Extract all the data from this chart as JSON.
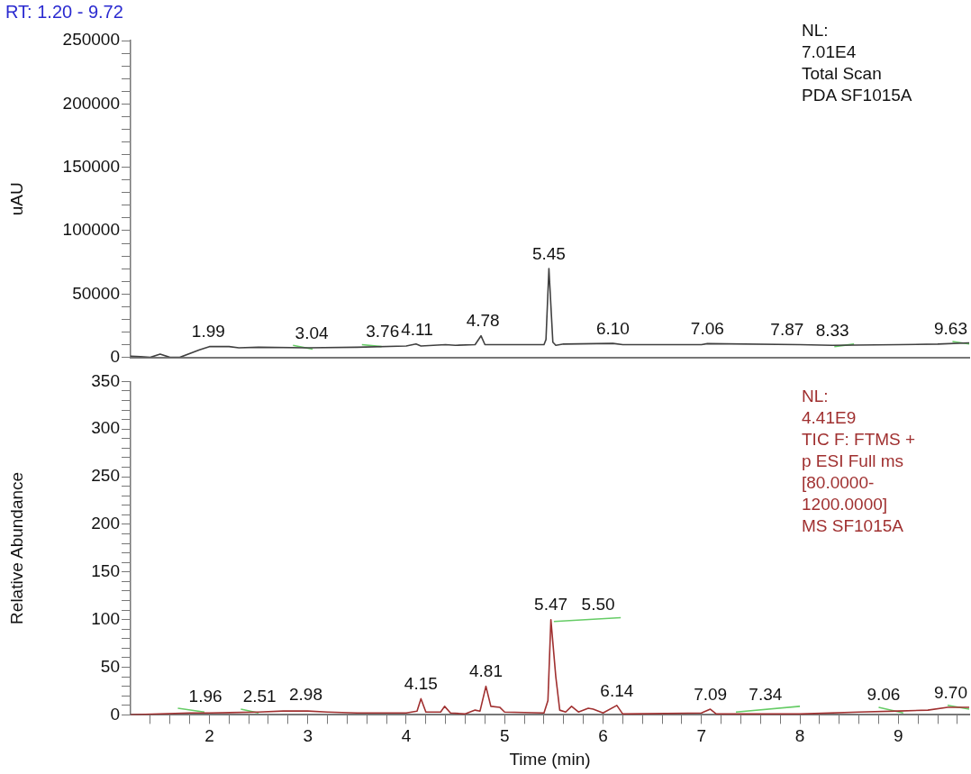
{
  "chart_data": [
    {
      "type": "line",
      "title": "RT: 1.20 - 9.72",
      "ylabel": "uAU",
      "xlim": [
        1.2,
        9.72
      ],
      "ylim": [
        0,
        250000
      ],
      "tick_labels": "y",
      "legend": false,
      "grid": false,
      "marker": "none",
      "yticks": [
        0,
        {
          "value": 10000,
          "label": null
        },
        {
          "value": 20000,
          "label": null
        },
        {
          "value": 30000,
          "label": null
        },
        {
          "value": 40000,
          "label": null
        },
        50000,
        {
          "value": 60000,
          "label": null
        },
        {
          "value": 70000,
          "label": null
        },
        {
          "value": 80000,
          "label": null
        },
        {
          "value": 90000,
          "label": null
        },
        100000,
        {
          "value": 110000,
          "label": null
        },
        {
          "value": 120000,
          "label": null
        },
        {
          "value": 130000,
          "label": null
        },
        {
          "value": 140000,
          "label": null
        },
        150000,
        {
          "value": 160000,
          "label": null
        },
        {
          "value": 170000,
          "label": null
        },
        {
          "value": 180000,
          "label": null
        },
        {
          "value": 190000,
          "label": null
        },
        200000,
        {
          "value": 210000,
          "label": null
        },
        {
          "value": 220000,
          "label": null
        },
        {
          "value": 230000,
          "label": null
        },
        {
          "value": 240000,
          "label": null
        },
        250000
      ],
      "series": [
        {
          "color": "#404040",
          "x": [
            1.2,
            1.3,
            1.4,
            1.5,
            1.6,
            1.7,
            1.9,
            2.0,
            2.2,
            2.3,
            2.5,
            3.0,
            3.5,
            4.0,
            4.1,
            4.15,
            4.4,
            4.5,
            4.7,
            4.76,
            4.8,
            5.0,
            5.4,
            5.42,
            5.45,
            5.49,
            5.52,
            5.6,
            6.1,
            6.2,
            7.0,
            7.06,
            8.0,
            8.33,
            9.0,
            9.4,
            9.72
          ],
          "values": [
            1000,
            500,
            0,
            2500,
            0,
            0,
            6000,
            8500,
            8500,
            7500,
            8000,
            7500,
            8000,
            9000,
            10500,
            9000,
            10000,
            9500,
            10000,
            17000,
            10000,
            10000,
            10000,
            14000,
            70100,
            12000,
            9500,
            10500,
            11000,
            10000,
            10000,
            10800,
            10000,
            9500,
            10000,
            10500,
            11500
          ]
        },
        {
          "color": "#66cc66",
          "x": [
            2.85,
            3.05,
            3.1,
            3.55,
            3.75,
            3.8,
            8.35,
            8.55,
            8.6,
            9.55,
            9.72
          ],
          "values": [
            9500,
            6500,
            null,
            10000,
            8500,
            null,
            8500,
            10500,
            null,
            12500,
            10500
          ]
        }
      ],
      "annotations": [
        {
          "text": "1.99",
          "x": 1.99,
          "y": 8500
        },
        {
          "text": "3.04",
          "x": 3.04,
          "y": 7500
        },
        {
          "text": "3.76",
          "x": 3.76,
          "y": 8500
        },
        {
          "text": "4.11",
          "x": 4.11,
          "y": 10500
        },
        {
          "text": "4.78",
          "x": 4.78,
          "y": 17000
        },
        {
          "text": "5.45",
          "x": 5.45,
          "y": 70100
        },
        {
          "text": "6.10",
          "x": 6.1,
          "y": 11000
        },
        {
          "text": "7.06",
          "x": 7.06,
          "y": 10800
        },
        {
          "text": "7.87",
          "x": 7.87,
          "y": 10000
        },
        {
          "text": "8.33",
          "x": 8.33,
          "y": 9500
        },
        {
          "text": "9.63",
          "x": 9.63,
          "y": 11000
        },
        "NL:",
        "7.01E4",
        "Total Scan",
        "PDA SF1015A"
      ]
    },
    {
      "type": "line",
      "xlabel": "Time (min)",
      "ylabel": "Relative Abundance",
      "xlim": [
        1.2,
        9.72
      ],
      "ylim": [
        0,
        350
      ],
      "legend": false,
      "grid": false,
      "marker": "none",
      "xticks": [
        {
          "value": 1.4,
          "label": null
        },
        {
          "value": 1.6,
          "label": null
        },
        {
          "value": 1.8,
          "label": null
        },
        2,
        {
          "value": 2.2,
          "label": null
        },
        {
          "value": 2.4,
          "label": null
        },
        {
          "value": 2.6,
          "label": null
        },
        {
          "value": 2.8,
          "label": null
        },
        3,
        {
          "value": 3.2,
          "label": null
        },
        {
          "value": 3.4,
          "label": null
        },
        {
          "value": 3.6,
          "label": null
        },
        {
          "value": 3.8,
          "label": null
        },
        4,
        {
          "value": 4.2,
          "label": null
        },
        {
          "value": 4.4,
          "label": null
        },
        {
          "value": 4.6,
          "label": null
        },
        {
          "value": 4.8,
          "label": null
        },
        5,
        {
          "value": 5.2,
          "label": null
        },
        {
          "value": 5.4,
          "label": null
        },
        {
          "value": 5.6,
          "label": null
        },
        {
          "value": 5.8,
          "label": null
        },
        6,
        {
          "value": 6.2,
          "label": null
        },
        {
          "value": 6.4,
          "label": null
        },
        {
          "value": 6.6,
          "label": null
        },
        {
          "value": 6.8,
          "label": null
        },
        7,
        {
          "value": 7.2,
          "label": null
        },
        {
          "value": 7.4,
          "label": null
        },
        {
          "value": 7.6,
          "label": null
        },
        {
          "value": 7.8,
          "label": null
        },
        8,
        {
          "value": 8.2,
          "label": null
        },
        {
          "value": 8.4,
          "label": null
        },
        {
          "value": 8.6,
          "label": null
        },
        {
          "value": 8.8,
          "label": null
        },
        9,
        {
          "value": 9.2,
          "label": null
        },
        {
          "value": 9.4,
          "label": null
        },
        {
          "value": 9.6,
          "label": null
        }
      ],
      "yticks": [
        0,
        {
          "value": 10,
          "label": null
        },
        {
          "value": 20,
          "label": null
        },
        {
          "value": 30,
          "label": null
        },
        {
          "value": 40,
          "label": null
        },
        50,
        {
          "value": 60,
          "label": null
        },
        {
          "value": 70,
          "label": null
        },
        {
          "value": 80,
          "label": null
        },
        {
          "value": 90,
          "label": null
        },
        100,
        {
          "value": 110,
          "label": null
        },
        {
          "value": 120,
          "label": null
        },
        {
          "value": 130,
          "label": null
        },
        {
          "value": 140,
          "label": null
        },
        150,
        {
          "value": 160,
          "label": null
        },
        {
          "value": 170,
          "label": null
        },
        {
          "value": 180,
          "label": null
        },
        {
          "value": 190,
          "label": null
        },
        200,
        {
          "value": 210,
          "label": null
        },
        {
          "value": 220,
          "label": null
        },
        {
          "value": 230,
          "label": null
        },
        {
          "value": 240,
          "label": null
        },
        250,
        {
          "value": 260,
          "label": null
        },
        {
          "value": 270,
          "label": null
        },
        {
          "value": 280,
          "label": null
        },
        {
          "value": 290,
          "label": null
        },
        300,
        {
          "value": 310,
          "label": null
        },
        {
          "value": 320,
          "label": null
        },
        {
          "value": 330,
          "label": null
        },
        {
          "value": 340,
          "label": null
        },
        350
      ],
      "series": [
        {
          "color": "#a03030",
          "x": [
            1.2,
            1.8,
            2.0,
            2.5,
            2.75,
            3.0,
            3.2,
            3.5,
            4.0,
            4.11,
            4.15,
            4.2,
            4.35,
            4.39,
            4.45,
            4.6,
            4.7,
            4.75,
            4.81,
            4.86,
            4.95,
            5.0,
            5.4,
            5.44,
            5.47,
            5.52,
            5.56,
            5.62,
            5.68,
            5.75,
            5.85,
            5.9,
            6.0,
            6.14,
            6.2,
            7.0,
            7.09,
            7.15,
            8.0,
            8.6,
            9.0,
            9.3,
            9.5,
            9.72
          ],
          "values": [
            0,
            2,
            2,
            3,
            4,
            4,
            3,
            2,
            2,
            4,
            17,
            3,
            3,
            9,
            2,
            1,
            5,
            4,
            30,
            9,
            8,
            3,
            2,
            15,
            100,
            40,
            5,
            3,
            9,
            3,
            7,
            6,
            2,
            10,
            1,
            2,
            6,
            1,
            1,
            3,
            4,
            5,
            8,
            8
          ]
        },
        {
          "color": "#66cc66",
          "x": [
            1.68,
            1.95,
            2.0,
            2.32,
            2.5,
            2.55,
            5.5,
            6.18,
            6.2,
            7.35,
            8.0,
            8.05,
            8.8,
            9.05,
            9.1,
            9.5,
            9.72
          ],
          "values": [
            7,
            3,
            null,
            6,
            2,
            null,
            98,
            102,
            null,
            3,
            9,
            null,
            8,
            2,
            null,
            10,
            6
          ]
        }
      ],
      "annotations": [
        {
          "text": "1.96",
          "x": 1.96,
          "y": 4
        },
        {
          "text": "2.51",
          "x": 2.51,
          "y": 4
        },
        {
          "text": "2.98",
          "x": 2.98,
          "y": 6
        },
        {
          "text": "4.15",
          "x": 4.15,
          "y": 17
        },
        {
          "text": "4.81",
          "x": 4.81,
          "y": 30
        },
        {
          "text": "5.47",
          "x": 5.47,
          "y": 100
        },
        {
          "text": "5.50",
          "x": 5.95,
          "y": 100
        },
        {
          "text": "6.14",
          "x": 6.14,
          "y": 10
        },
        {
          "text": "7.09",
          "x": 7.09,
          "y": 6
        },
        {
          "text": "7.34",
          "x": 7.65,
          "y": 6
        },
        {
          "text": "9.06",
          "x": 8.85,
          "y": 6
        },
        {
          "text": "9.70",
          "x": 9.55,
          "y": 8
        },
        "NL:",
        "4.41E9",
        "TIC F: FTMS +",
        "p ESI Full ms",
        "[80.0000-",
        "1200.0000]",
        "MS SF1015A"
      ]
    }
  ]
}
